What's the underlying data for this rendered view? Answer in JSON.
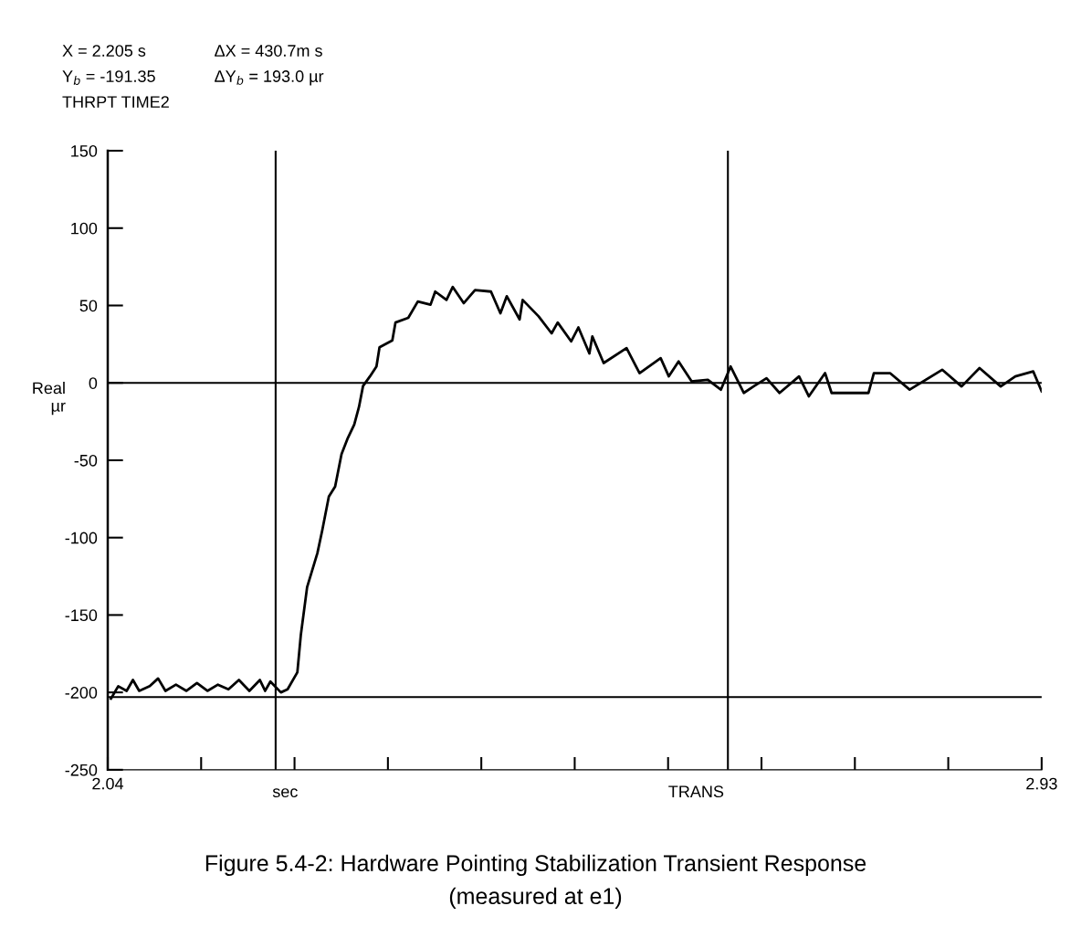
{
  "chart_data": {
    "type": "line",
    "title": "Figure 5.4-2: Hardware Pointing Stabilization Transient Response\n(measured at e1)",
    "xlabel": "sec",
    "ylabel": "Real\nµr",
    "annotations": [
      "X = 2.205 s",
      "ΔX = 430.7m s",
      "Y$_{b}$ = -191.35",
      "ΔY$_{b}$ = 193.0 µr",
      "THRPT TIME2",
      "TRANS"
    ],
    "x": [
      2.0431,
      2.05,
      2.058,
      2.064,
      2.07,
      2.08,
      2.088,
      2.095,
      2.105,
      2.115,
      2.125,
      2.135,
      2.145,
      2.155,
      2.165,
      2.175,
      2.185,
      2.19,
      2.195,
      2.205,
      2.2114,
      2.2207,
      2.224,
      2.23,
      2.2398,
      2.2445,
      2.2507,
      2.2567,
      2.2628,
      2.2688,
      2.2749,
      2.2794,
      2.2833,
      2.29,
      2.2961,
      2.299,
      2.3112,
      2.3142,
      2.3264,
      2.3355,
      2.3476,
      2.3521,
      2.3628,
      2.3688,
      2.3793,
      2.39,
      2.4052,
      2.4142,
      2.4203,
      2.4325,
      2.4354,
      2.4506,
      2.463,
      2.4688,
      2.4816,
      2.4885,
      2.499,
      2.5018,
      2.5126,
      2.5344,
      2.5468,
      2.5669,
      2.5747,
      2.584,
      2.5964,
      2.6119,
      2.6243,
      2.6336,
      2.6461,
      2.6554,
      2.6678,
      2.6802,
      2.6988,
      2.7081,
      2.7236,
      2.7298,
      2.765,
      2.7701,
      2.7855,
      2.8042,
      2.8352,
      2.8537,
      2.8708,
      2.891,
      2.9049,
      2.922,
      2.93
    ],
    "series": [
      {
        "color": "#000000",
        "values": [
          -204,
          -196,
          -199,
          -192,
          -199,
          -196,
          -191,
          -199,
          -195,
          -199,
          -194,
          -199,
          -195,
          -198,
          -192,
          -199,
          -192,
          -199,
          -193,
          -200,
          -198,
          -187,
          -163,
          -132,
          -110,
          -95,
          -73.5,
          -67,
          -46,
          -35.6,
          -27,
          -15.6,
          -2,
          4.3,
          10.6,
          23,
          27.4,
          39,
          42,
          52.6,
          50.5,
          59,
          53.6,
          62,
          51.5,
          60,
          59,
          45,
          56,
          41,
          53.6,
          43,
          32,
          39,
          26.8,
          35.8,
          19,
          30,
          12.8,
          22.5,
          6.3,
          16,
          4.2,
          13.9,
          1,
          2,
          -4.4,
          10.6,
          -6.5,
          -2.3,
          3,
          -6.5,
          4.2,
          -8.7,
          6.3,
          -6.5,
          -6.5,
          6.3,
          6.3,
          -4.4,
          8.5,
          -2.3,
          9.6,
          -2.3,
          4.2,
          7.4,
          -5.5
        ]
      }
    ],
    "xlim": [
      2.04,
      2.93
    ],
    "xticks": [
      {
        "value": 2.04,
        "label": "2.04"
      },
      {
        "value": 2.129,
        "label": null
      },
      {
        "value": 2.218,
        "label": null
      },
      {
        "value": 2.307,
        "label": null
      },
      {
        "value": 2.396,
        "label": null
      },
      {
        "value": 2.485,
        "label": null
      },
      {
        "value": 2.574,
        "label": null
      },
      {
        "value": 2.663,
        "label": null
      },
      {
        "value": 2.752,
        "label": null
      },
      {
        "value": 2.841,
        "label": null
      },
      {
        "value": 2.93,
        "label": "2.93"
      }
    ],
    "ylim": [
      -250,
      150
    ],
    "yticks": [
      -250,
      -200,
      -150,
      -100,
      -50,
      0,
      50,
      100,
      150
    ],
    "ref_lines": [
      {
        "axis": "y",
        "value": 0,
        "color": "#000000"
      },
      {
        "axis": "y",
        "value": -203,
        "color": "#000000"
      },
      {
        "axis": "x",
        "value": 2.2,
        "color": "#000000"
      },
      {
        "axis": "x",
        "value": 2.631,
        "color": "#000000"
      }
    ],
    "grid": false,
    "legend": false,
    "marker": "none",
    "line_style": "solid"
  }
}
